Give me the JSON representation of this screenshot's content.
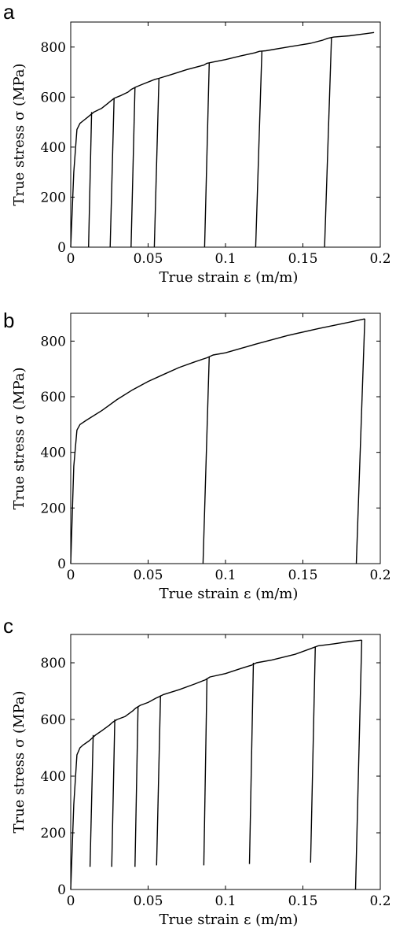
{
  "chart_data": [
    {
      "panel_letter": "a",
      "type": "line",
      "xlabel": "True strain ε (m/m)",
      "ylabel": "True stress σ (MPa)",
      "xlim": [
        0,
        0.2
      ],
      "ylim": [
        0,
        900
      ],
      "xticks": [
        0,
        0.05,
        0.1,
        0.15,
        0.2
      ],
      "xtick_labels": [
        "0",
        "0.05",
        "0.1",
        "0.15",
        "0.2"
      ],
      "yticks": [
        0,
        200,
        400,
        600,
        800
      ],
      "ytick_labels": [
        "0",
        "200",
        "400",
        "600",
        "800"
      ],
      "grid": false,
      "series": [
        {
          "x": [
            0,
            0.002,
            0.004,
            0.006,
            0.008,
            0.011,
            0.013,
            0.015,
            0.02,
            0.024,
            0.026,
            0.028,
            0.032,
            0.037,
            0.039,
            0.042,
            0.046,
            0.052,
            0.054,
            0.057,
            0.065,
            0.075,
            0.086,
            0.088,
            0.092,
            0.1,
            0.11,
            0.119,
            0.122,
            0.126,
            0.14,
            0.155,
            0.163,
            0.166,
            0.17,
            0.18,
            0.19,
            0.196
          ],
          "y": [
            0,
            300,
            470,
            495,
            505,
            520,
            530,
            540,
            555,
            575,
            585,
            595,
            605,
            620,
            630,
            640,
            650,
            665,
            670,
            675,
            690,
            710,
            728,
            735,
            740,
            750,
            765,
            777,
            783,
            785,
            800,
            815,
            828,
            835,
            840,
            845,
            853,
            858
          ]
        }
      ],
      "unloadings": [
        {
          "x": [
            0.0135,
            0.0115
          ],
          "y": [
            540,
            0
          ]
        },
        {
          "x": [
            0.028,
            0.0255
          ],
          "y": [
            595,
            0
          ]
        },
        {
          "x": [
            0.0415,
            0.039
          ],
          "y": [
            640,
            0
          ]
        },
        {
          "x": [
            0.057,
            0.054
          ],
          "y": [
            675,
            0
          ]
        },
        {
          "x": [
            0.0895,
            0.0865
          ],
          "y": [
            735,
            0
          ]
        },
        {
          "x": [
            0.1235,
            0.1195
          ],
          "y": [
            783,
            0
          ]
        },
        {
          "x": [
            0.1685,
            0.164
          ],
          "y": [
            840,
            0
          ]
        }
      ]
    },
    {
      "panel_letter": "b",
      "type": "line",
      "xlabel": "True strain ε (m/m)",
      "ylabel": "True stress σ (MPa)",
      "xlim": [
        0,
        0.2
      ],
      "ylim": [
        0,
        900
      ],
      "xticks": [
        0,
        0.05,
        0.1,
        0.15,
        0.2
      ],
      "xtick_labels": [
        "0",
        "0.05",
        "0.1",
        "0.15",
        "0.2"
      ],
      "yticks": [
        0,
        200,
        400,
        600,
        800
      ],
      "ytick_labels": [
        "0",
        "200",
        "400",
        "600",
        "800"
      ],
      "grid": false,
      "series": [
        {
          "x": [
            0,
            0.002,
            0.004,
            0.006,
            0.01,
            0.02,
            0.03,
            0.04,
            0.05,
            0.06,
            0.07,
            0.08,
            0.088,
            0.092,
            0.1,
            0.12,
            0.14,
            0.16,
            0.18,
            0.19
          ],
          "y": [
            0,
            350,
            480,
            500,
            515,
            550,
            590,
            625,
            655,
            680,
            705,
            725,
            740,
            750,
            758,
            790,
            820,
            845,
            868,
            880
          ]
        }
      ],
      "unloadings": [
        {
          "x": [
            0.0895,
            0.0855
          ],
          "y": [
            745,
            0
          ]
        },
        {
          "x": [
            0.19,
            0.1845
          ],
          "y": [
            880,
            0
          ]
        }
      ]
    },
    {
      "panel_letter": "c",
      "type": "line",
      "xlabel": "True strain ε (m/m)",
      "ylabel": "True stress σ (MPa)",
      "xlim": [
        0,
        0.2
      ],
      "ylim": [
        0,
        900
      ],
      "xticks": [
        0,
        0.05,
        0.1,
        0.15,
        0.2
      ],
      "xtick_labels": [
        "0",
        "0.05",
        "0.1",
        "0.15",
        "0.2"
      ],
      "yticks": [
        0,
        200,
        400,
        600,
        800
      ],
      "ytick_labels": [
        "0",
        "200",
        "400",
        "600",
        "800"
      ],
      "grid": false,
      "series": [
        {
          "x": [
            0,
            0.002,
            0.004,
            0.006,
            0.008,
            0.012,
            0.014,
            0.016,
            0.02,
            0.025,
            0.027,
            0.03,
            0.035,
            0.04,
            0.042,
            0.045,
            0.05,
            0.055,
            0.057,
            0.06,
            0.07,
            0.08,
            0.087,
            0.09,
            0.1,
            0.11,
            0.117,
            0.12,
            0.13,
            0.145,
            0.156,
            0.16,
            0.17,
            0.18,
            0.188
          ],
          "y": [
            0,
            300,
            475,
            500,
            510,
            525,
            535,
            545,
            560,
            580,
            590,
            600,
            610,
            630,
            640,
            650,
            660,
            675,
            680,
            688,
            705,
            725,
            740,
            750,
            762,
            780,
            792,
            800,
            810,
            830,
            852,
            860,
            867,
            875,
            880
          ]
        }
      ],
      "unloadings": [
        {
          "x": [
            0.0145,
            0.0125
          ],
          "y": [
            545,
            80
          ]
        },
        {
          "x": [
            0.0285,
            0.0265
          ],
          "y": [
            600,
            80
          ]
        },
        {
          "x": [
            0.0435,
            0.0415
          ],
          "y": [
            645,
            80
          ]
        },
        {
          "x": [
            0.058,
            0.0555
          ],
          "y": [
            685,
            85
          ]
        },
        {
          "x": [
            0.088,
            0.086
          ],
          "y": [
            745,
            85
          ]
        },
        {
          "x": [
            0.118,
            0.1155
          ],
          "y": [
            800,
            90
          ]
        },
        {
          "x": [
            0.158,
            0.155
          ],
          "y": [
            858,
            95
          ]
        },
        {
          "x": [
            0.188,
            0.184
          ],
          "y": [
            880,
            0
          ]
        }
      ]
    }
  ]
}
